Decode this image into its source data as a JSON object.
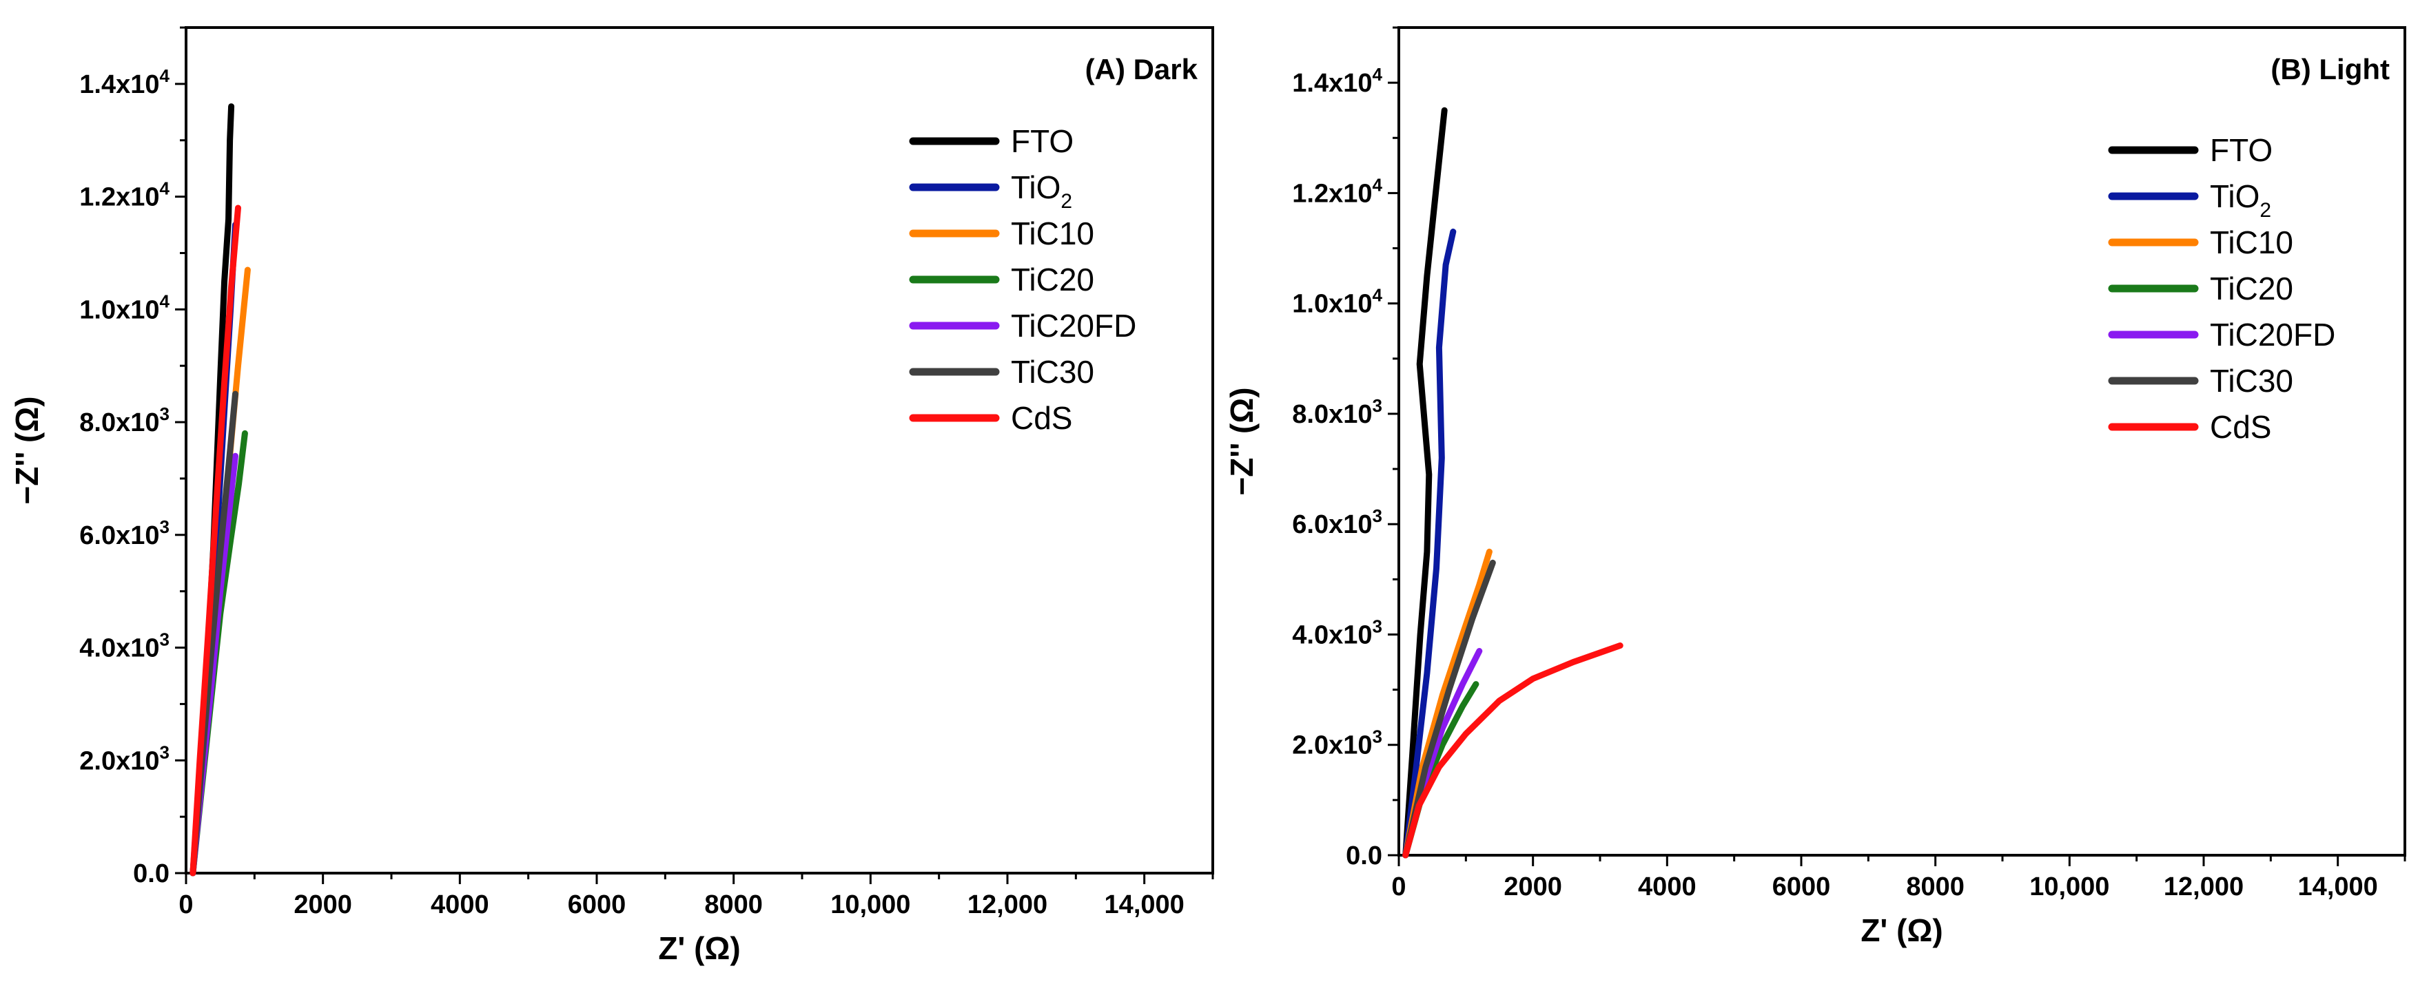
{
  "figure": {
    "panels_count": 2
  },
  "chart_data": [
    {
      "type": "line",
      "title": "(A) Dark",
      "xlabel": "Z' (Ω)",
      "ylabel": "−Z'' (Ω)",
      "xlim": [
        0,
        15000
      ],
      "ylim": [
        0,
        15000
      ],
      "legend_position": "top-right",
      "x_ticks": [
        {
          "value": 0,
          "label": "0"
        },
        {
          "value": 2000,
          "label": "2000"
        },
        {
          "value": 4000,
          "label": "4000"
        },
        {
          "value": 6000,
          "label": "6000"
        },
        {
          "value": 8000,
          "label": "8000"
        },
        {
          "value": 10000,
          "label": "10,000"
        },
        {
          "value": 12000,
          "label": "12,000"
        },
        {
          "value": 14000,
          "label": "14,000"
        }
      ],
      "y_ticks": [
        {
          "value": 0,
          "mant": "0.0",
          "exp": ""
        },
        {
          "value": 2000,
          "mant": "2.0x10",
          "exp": "3"
        },
        {
          "value": 4000,
          "mant": "4.0x10",
          "exp": "3"
        },
        {
          "value": 6000,
          "mant": "6.0x10",
          "exp": "3"
        },
        {
          "value": 8000,
          "mant": "8.0x10",
          "exp": "3"
        },
        {
          "value": 10000,
          "mant": "1.0x10",
          "exp": "4"
        },
        {
          "value": 12000,
          "mant": "1.2x10",
          "exp": "4"
        },
        {
          "value": 14000,
          "mant": "1.4x10",
          "exp": "4"
        }
      ],
      "series": [
        {
          "name": "FTO",
          "label_main": "FTO",
          "label_sub": "",
          "color": "#000000",
          "x": [
            100,
            200,
            300,
            400,
            500,
            560,
            620,
            640,
            660
          ],
          "y": [
            0,
            1500,
            3500,
            5800,
            8800,
            10500,
            11600,
            13000,
            13600
          ]
        },
        {
          "name": "TiO2",
          "label_main": "TiO",
          "label_sub": "2",
          "color": "#0a1aa0",
          "x": [
            100,
            200,
            320,
            450,
            560,
            650,
            720
          ],
          "y": [
            0,
            1800,
            3800,
            6000,
            8200,
            10000,
            11500
          ]
        },
        {
          "name": "TiC10",
          "label_main": "TiC10",
          "label_sub": "",
          "color": "#ff8000",
          "x": [
            100,
            220,
            350,
            500,
            640,
            760,
            900
          ],
          "y": [
            0,
            1700,
            3500,
            5500,
            7400,
            9000,
            10700
          ]
        },
        {
          "name": "TiC20",
          "label_main": "TiC20",
          "label_sub": "",
          "color": "#1a7a1a",
          "x": [
            100,
            220,
            360,
            500,
            650,
            770,
            860
          ],
          "y": [
            0,
            1400,
            3000,
            4600,
            5900,
            6900,
            7800
          ]
        },
        {
          "name": "TiC20FD",
          "label_main": "TiC20FD",
          "label_sub": "",
          "color": "#8a1af0",
          "x": [
            100,
            220,
            360,
            500,
            620,
            720
          ],
          "y": [
            0,
            1500,
            3200,
            5000,
            6300,
            7400
          ]
        },
        {
          "name": "TiC30",
          "label_main": "TiC30",
          "label_sub": "",
          "color": "#404040",
          "x": [
            100,
            220,
            360,
            500,
            620,
            720
          ],
          "y": [
            0,
            1800,
            3800,
            5700,
            7200,
            8500
          ]
        },
        {
          "name": "CdS",
          "label_main": "CdS",
          "label_sub": "",
          "color": "#ff1010",
          "x": [
            100,
            200,
            320,
            440,
            560,
            660,
            760
          ],
          "y": [
            0,
            2000,
            4200,
            6500,
            8700,
            10400,
            11800
          ]
        }
      ]
    },
    {
      "type": "line",
      "title": "(B) Light",
      "xlabel": "Z' (Ω)",
      "ylabel": "−Z'' (Ω)",
      "xlim": [
        0,
        15000
      ],
      "ylim": [
        0,
        15000
      ],
      "legend_position": "top-right",
      "x_ticks": [
        {
          "value": 0,
          "label": "0"
        },
        {
          "value": 2000,
          "label": "2000"
        },
        {
          "value": 4000,
          "label": "4000"
        },
        {
          "value": 6000,
          "label": "6000"
        },
        {
          "value": 8000,
          "label": "8000"
        },
        {
          "value": 10000,
          "label": "10,000"
        },
        {
          "value": 12000,
          "label": "12,000"
        },
        {
          "value": 14000,
          "label": "14,000"
        }
      ],
      "y_ticks": [
        {
          "value": 0,
          "mant": "0.0",
          "exp": ""
        },
        {
          "value": 2000,
          "mant": "2.0x10",
          "exp": "3"
        },
        {
          "value": 4000,
          "mant": "4.0x10",
          "exp": "3"
        },
        {
          "value": 6000,
          "mant": "6.0x10",
          "exp": "3"
        },
        {
          "value": 8000,
          "mant": "8.0x10",
          "exp": "3"
        },
        {
          "value": 10000,
          "mant": "1.0x10",
          "exp": "4"
        },
        {
          "value": 12000,
          "mant": "1.2x10",
          "exp": "4"
        },
        {
          "value": 14000,
          "mant": "1.4x10",
          "exp": "4"
        }
      ],
      "series": [
        {
          "name": "FTO",
          "label_main": "FTO",
          "label_sub": "",
          "color": "#000000",
          "x": [
            100,
            200,
            320,
            420,
            450,
            310,
            420,
            550,
            680
          ],
          "y": [
            0,
            1800,
            4000,
            5500,
            6900,
            8900,
            10500,
            12000,
            13500
          ]
        },
        {
          "name": "TiO2",
          "label_main": "TiO",
          "label_sub": "2",
          "color": "#0a1aa0",
          "x": [
            100,
            250,
            420,
            560,
            640,
            600,
            700,
            810
          ],
          "y": [
            0,
            1500,
            3300,
            5200,
            7200,
            9200,
            10700,
            11300
          ]
        },
        {
          "name": "TiC10",
          "label_main": "TiC10",
          "label_sub": "",
          "color": "#ff8000",
          "x": [
            100,
            350,
            650,
            950,
            1200,
            1350
          ],
          "y": [
            0,
            1600,
            2900,
            4000,
            4900,
            5500
          ]
        },
        {
          "name": "TiC20",
          "label_main": "TiC20",
          "label_sub": "",
          "color": "#1a7a1a",
          "x": [
            100,
            350,
            650,
            950,
            1150
          ],
          "y": [
            0,
            1100,
            2000,
            2700,
            3100
          ]
        },
        {
          "name": "TiC20FD",
          "label_main": "TiC20FD",
          "label_sub": "",
          "color": "#8a1af0",
          "x": [
            100,
            350,
            650,
            950,
            1200
          ],
          "y": [
            0,
            1200,
            2300,
            3100,
            3700
          ]
        },
        {
          "name": "TiC30",
          "label_main": "TiC30",
          "label_sub": "",
          "color": "#404040",
          "x": [
            100,
            400,
            750,
            1100,
            1400
          ],
          "y": [
            0,
            1600,
            3000,
            4300,
            5300
          ]
        },
        {
          "name": "CdS",
          "label_main": "CdS",
          "label_sub": "",
          "color": "#ff1010",
          "x": [
            100,
            300,
            600,
            1000,
            1500,
            2000,
            2600,
            3300
          ],
          "y": [
            0,
            900,
            1600,
            2200,
            2800,
            3200,
            3500,
            3800
          ]
        }
      ]
    }
  ]
}
